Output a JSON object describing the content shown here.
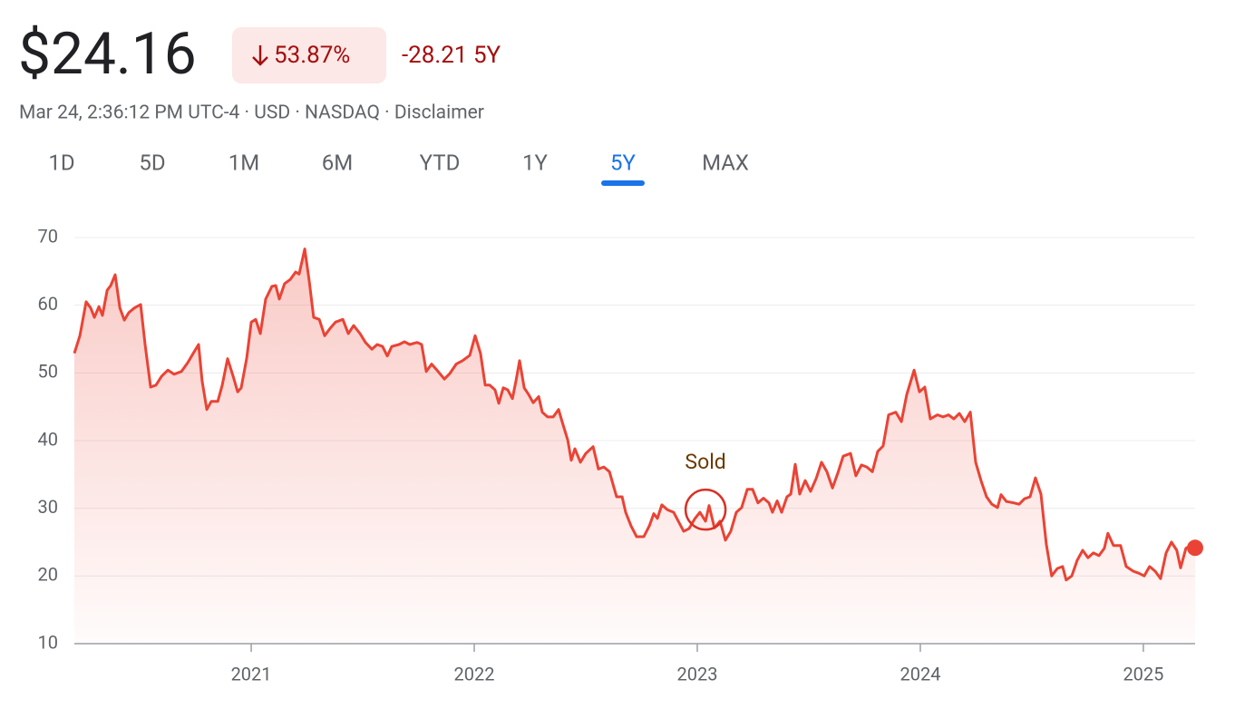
{
  "header": {
    "price": "$24.16",
    "change_percent": "53.87%",
    "change_abs": "-28.21 5Y",
    "meta": "Mar 24, 2:36:12 PM UTC-4 · USD · NASDAQ · Disclaimer"
  },
  "tabs": {
    "items": [
      "1D",
      "5D",
      "1M",
      "6M",
      "YTD",
      "1Y",
      "5Y",
      "MAX"
    ],
    "selected": 6
  },
  "chart_data": {
    "type": "line",
    "x": [
      2020.207,
      2020.232,
      2020.26,
      2020.28,
      2020.297,
      2020.317,
      2020.333,
      2020.354,
      2020.37,
      2020.39,
      2020.411,
      2020.431,
      2020.451,
      2020.476,
      2020.504,
      2020.524,
      2020.549,
      2020.573,
      2020.598,
      2020.626,
      2020.654,
      2020.687,
      2020.715,
      2020.74,
      2020.764,
      2020.78,
      2020.801,
      2020.821,
      2020.85,
      2020.87,
      2020.894,
      2020.919,
      2020.939,
      2020.955,
      2020.98,
      2021.0,
      2021.02,
      2021.041,
      2021.065,
      2021.093,
      2021.11,
      2021.126,
      2021.15,
      2021.175,
      2021.199,
      2021.215,
      2021.24,
      2021.26,
      2021.28,
      2021.305,
      2021.329,
      2021.354,
      2021.378,
      2021.411,
      2021.435,
      2021.459,
      2021.488,
      2021.512,
      2021.541,
      2021.565,
      2021.589,
      2021.61,
      2021.63,
      2021.663,
      2021.687,
      2021.711,
      2021.744,
      2021.764,
      2021.785,
      2021.809,
      2021.833,
      2021.866,
      2021.89,
      2021.919,
      2021.947,
      2021.98,
      2022.004,
      2022.028,
      2022.049,
      2022.069,
      2022.093,
      2022.11,
      2022.13,
      2022.15,
      2022.171,
      2022.187,
      2022.203,
      2022.224,
      2022.244,
      2022.264,
      2022.289,
      2022.305,
      2022.329,
      2022.354,
      2022.378,
      2022.394,
      2022.419,
      2022.435,
      2022.451,
      2022.476,
      2022.5,
      2022.533,
      2022.557,
      2022.581,
      2022.606,
      2022.638,
      2022.663,
      2022.679,
      2022.703,
      2022.728,
      2022.76,
      2022.785,
      2022.805,
      2022.821,
      2022.841,
      2022.866,
      2022.894,
      2022.915,
      2022.939,
      2022.963,
      2022.988,
      2023.012,
      2023.037,
      2023.053,
      2023.077,
      2023.102,
      2023.126,
      2023.15,
      2023.175,
      2023.199,
      2023.224,
      2023.248,
      2023.272,
      2023.297,
      2023.321,
      2023.337,
      2023.358,
      2023.378,
      2023.402,
      2023.419,
      2023.439,
      2023.459,
      2023.484,
      2023.508,
      2023.533,
      2023.557,
      2023.581,
      2023.606,
      2023.63,
      2023.654,
      2023.687,
      2023.711,
      2023.736,
      2023.76,
      2023.785,
      2023.809,
      2023.833,
      2023.858,
      2023.89,
      2023.915,
      2023.939,
      2023.972,
      2023.996,
      2024.02,
      2024.045,
      2024.077,
      2024.102,
      2024.126,
      2024.15,
      2024.175,
      2024.199,
      2024.224,
      2024.248,
      2024.272,
      2024.297,
      2024.321,
      2024.346,
      2024.362,
      2024.386,
      2024.419,
      2024.443,
      2024.467,
      2024.492,
      2024.516,
      2024.541,
      2024.565,
      2024.589,
      2024.614,
      2024.638,
      2024.654,
      2024.679,
      2024.703,
      2024.728,
      2024.752,
      2024.776,
      2024.801,
      2024.825,
      2024.841,
      2024.866,
      2024.898,
      2024.923,
      2024.955,
      2024.98,
      2025.004,
      2025.028,
      2025.053,
      2025.077,
      2025.102,
      2025.126,
      2025.15,
      2025.167,
      2025.191,
      2025.215,
      2025.232
    ],
    "series": [
      {
        "name": "Price",
        "color": "#ea4335",
        "values": [
          52.9,
          55.5,
          60.5,
          59.6,
          58.2,
          59.8,
          58.5,
          62.2,
          62.9,
          64.5,
          59.6,
          57.8,
          58.9,
          59.6,
          60.1,
          54.2,
          47.9,
          48.2,
          49.5,
          50.4,
          49.8,
          50.2,
          51.5,
          52.9,
          54.2,
          48.8,
          44.6,
          45.8,
          45.8,
          48.2,
          52.1,
          49.5,
          47.2,
          47.8,
          52.2,
          57.5,
          57.9,
          55.8,
          60.9,
          62.8,
          62.9,
          60.9,
          63.2,
          63.8,
          64.9,
          64.6,
          68.3,
          63.6,
          58.2,
          57.9,
          55.5,
          56.6,
          57.5,
          57.9,
          55.8,
          57.0,
          55.8,
          54.5,
          53.5,
          54.2,
          53.9,
          52.5,
          53.9,
          54.2,
          54.6,
          54.2,
          54.5,
          54.2,
          50.2,
          51.3,
          50.4,
          49.1,
          49.9,
          51.3,
          51.8,
          52.6,
          55.5,
          52.9,
          48.2,
          48.2,
          47.5,
          45.5,
          47.8,
          47.5,
          46.2,
          48.8,
          51.8,
          47.8,
          46.8,
          45.6,
          46.5,
          44.2,
          43.5,
          43.5,
          44.6,
          42.8,
          40.1,
          37.1,
          38.8,
          36.8,
          38.1,
          39.1,
          35.8,
          36.1,
          35.4,
          31.7,
          31.7,
          29.4,
          27.4,
          25.8,
          25.8,
          27.4,
          29.2,
          28.5,
          30.5,
          29.8,
          29.4,
          28.1,
          26.6,
          27.0,
          28.4,
          29.4,
          28.1,
          30.4,
          27.1,
          28.1,
          25.3,
          26.6,
          29.4,
          30.1,
          32.8,
          32.8,
          30.8,
          31.5,
          30.8,
          29.4,
          31.1,
          29.4,
          31.7,
          32.1,
          36.5,
          32.1,
          34.1,
          32.5,
          34.4,
          36.8,
          35.4,
          33.0,
          35.2,
          37.7,
          38.1,
          34.8,
          36.4,
          36.1,
          35.4,
          38.4,
          39.2,
          43.8,
          44.2,
          42.8,
          46.8,
          50.4,
          47.2,
          47.9,
          43.2,
          43.8,
          43.5,
          43.8,
          43.2,
          44.0,
          42.8,
          44.2,
          36.8,
          34.1,
          31.7,
          30.6,
          30.1,
          32.0,
          31.0,
          30.8,
          30.6,
          31.4,
          31.7,
          34.5,
          32.1,
          24.7,
          20.0,
          21.1,
          21.4,
          19.4,
          20.0,
          22.3,
          23.8,
          22.7,
          23.4,
          23.0,
          24.1,
          26.3,
          24.5,
          24.5,
          21.4,
          20.7,
          20.4,
          20.0,
          21.4,
          20.7,
          19.6,
          23.4,
          25.0,
          23.8,
          21.2,
          24.1,
          24.5,
          24.16
        ]
      }
    ],
    "xlim": [
      2020.207,
      2025.232
    ],
    "xticks": [
      2021,
      2022,
      2023,
      2024,
      2025
    ],
    "ylim": [
      10,
      70
    ],
    "yticks": [
      10,
      20,
      30,
      40,
      50,
      60,
      70
    ],
    "grid": true,
    "annotations": [
      {
        "text": "Sold",
        "x": 2023.037,
        "y": 29.8
      }
    ]
  }
}
